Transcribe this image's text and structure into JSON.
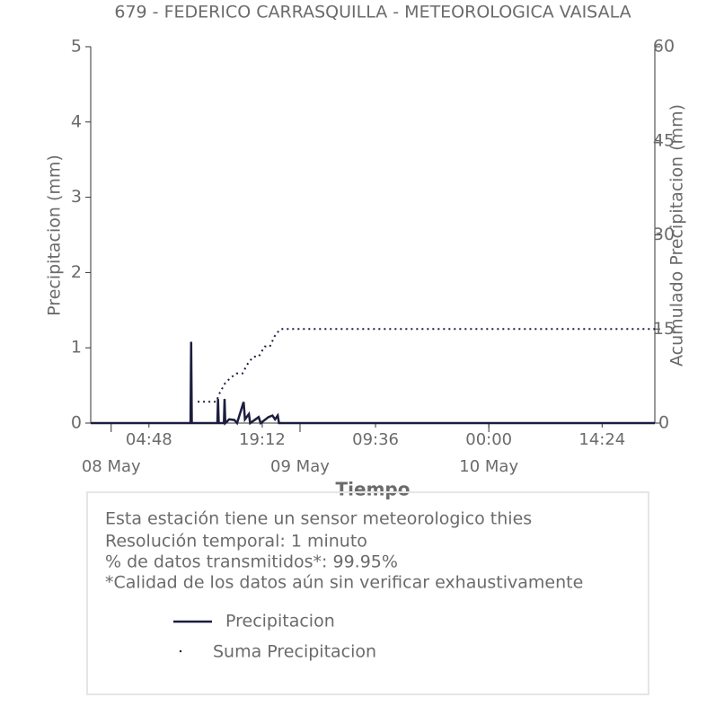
{
  "chart_data": {
    "type": "line",
    "title": "679 - FEDERICO CARRASQUILLA - METEOROLOGICA VAISALA",
    "xlabel": "Tiempo",
    "ylabel": "Precipitacion (mm)",
    "y2label": "Acumulado Precipitacion (mm)",
    "xlim": [
      "07 May 21:24",
      "10 May 21:06"
    ],
    "xticks": [
      {
        "value": "08 May 04:48",
        "label": "04:48"
      },
      {
        "value": "08 May 19:12",
        "label": "19:12"
      },
      {
        "value": "09 May 09:36",
        "label": "09:36"
      },
      {
        "value": "10 May 00:00",
        "label": "00:00"
      },
      {
        "value": "10 May 14:24",
        "label": "14:24"
      }
    ],
    "xticks_major": [
      {
        "value": "08 May 00:00",
        "label": "08 May"
      },
      {
        "value": "09 May 00:00",
        "label": "09 May"
      },
      {
        "value": "10 May 00:00",
        "label": "10 May"
      }
    ],
    "ylim": [
      0,
      5
    ],
    "yticks": [
      0,
      1,
      2,
      3,
      4,
      5
    ],
    "y2lim": [
      0,
      60
    ],
    "y2ticks": [
      0,
      15,
      30,
      45,
      60
    ],
    "series": [
      {
        "name": "Precipitacion",
        "color": "#1c1d3f",
        "x": [
          "07 May 21:24",
          "08 May 10:05",
          "08 May 10:10",
          "08 May 10:15",
          "08 May 13:30",
          "08 May 13:35",
          "08 May 13:40",
          "08 May 14:20",
          "08 May 14:25",
          "08 May 14:30",
          "08 May 15:00",
          "08 May 15:40",
          "08 May 16:00",
          "08 May 16:50",
          "08 May 17:00",
          "08 May 17:30",
          "08 May 17:40",
          "08 May 18:45",
          "08 May 19:00",
          "08 May 20:00",
          "08 May 20:30",
          "08 May 20:50",
          "08 May 21:10",
          "08 May 21:20",
          "10 May 21:06"
        ],
        "values": [
          0,
          0,
          1.08,
          0,
          0,
          0.32,
          0,
          0,
          0.32,
          0,
          0.05,
          0.04,
          0,
          0.28,
          0.05,
          0.12,
          0,
          0.08,
          0,
          0.08,
          0.1,
          0.05,
          0.1,
          0,
          0
        ]
      },
      {
        "name": "Suma Precipitacion",
        "color": "#1c1d3f",
        "axis": "y2",
        "dotted": true,
        "x": [
          "08 May 11:00",
          "08 May 13:20",
          "08 May 13:50",
          "08 May 14:30",
          "08 May 15:10",
          "08 May 15:55",
          "08 May 16:40",
          "08 May 17:25",
          "08 May 18:05",
          "08 May 18:45",
          "08 May 19:30",
          "08 May 20:10",
          "08 May 20:55",
          "08 May 21:35",
          "10 May 21:06"
        ],
        "values": [
          3.4,
          3.4,
          4.9,
          6.4,
          7.2,
          7.9,
          7.9,
          9.6,
          10.6,
          10.6,
          12.2,
          12.2,
          14.2,
          15.0,
          15.0
        ]
      }
    ],
    "info": [
      "Esta estación tiene un sensor meteorologico thies",
      "Resolución temporal: 1 minuto",
      "% de datos transmitidos*: 99.95%",
      "*Calidad de los datos aún sin verificar exhaustivamente"
    ]
  }
}
